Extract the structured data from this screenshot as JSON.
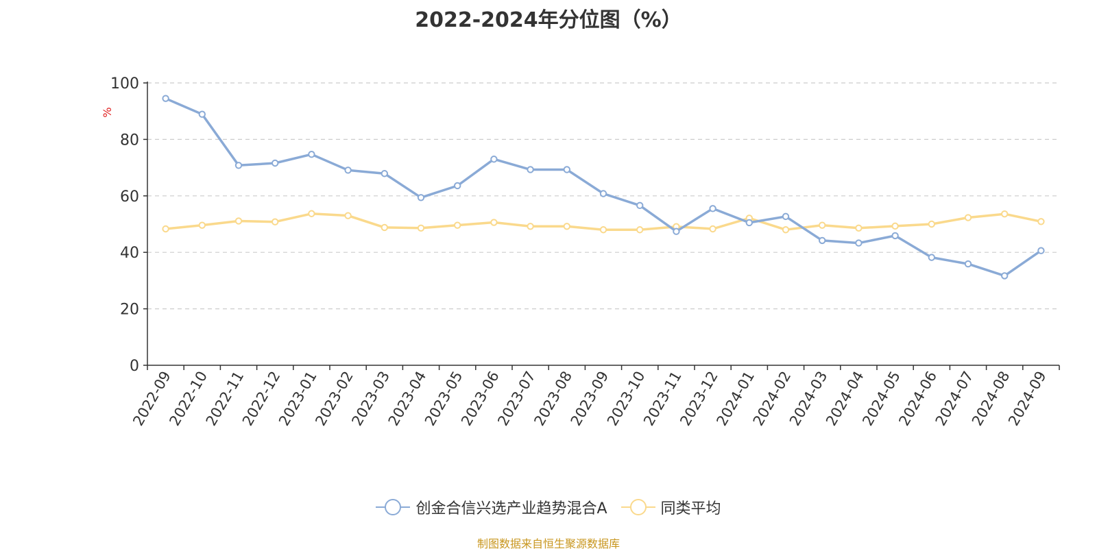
{
  "chart_data": {
    "type": "line",
    "title": "2022-2024年分位图（%）",
    "ylabel": "%",
    "xlabel": "",
    "ylim": [
      0,
      100
    ],
    "yticks": [
      0,
      20,
      40,
      60,
      80,
      100
    ],
    "grid": true,
    "legend_position": "bottom",
    "categories": [
      "2022-09",
      "2022-10",
      "2022-11",
      "2022-12",
      "2023-01",
      "2023-02",
      "2023-03",
      "2023-04",
      "2023-05",
      "2023-06",
      "2023-07",
      "2023-08",
      "2023-09",
      "2023-10",
      "2023-11",
      "2023-12",
      "2024-01",
      "2024-02",
      "2024-03",
      "2024-04",
      "2024-05",
      "2024-06",
      "2024-07",
      "2024-08",
      "2024-09"
    ],
    "series": [
      {
        "name": "创金合信兴选产业趋势混合A",
        "color": "#8aaad6",
        "values": [
          94.5,
          88.9,
          70.8,
          71.6,
          74.7,
          69.1,
          67.9,
          59.4,
          63.6,
          73.0,
          69.3,
          69.3,
          60.8,
          56.6,
          47.4,
          55.5,
          50.5,
          52.7,
          44.2,
          43.3,
          45.9,
          38.2,
          35.9,
          31.7,
          40.6
        ]
      },
      {
        "name": "同类平均",
        "color": "#fad98c",
        "values": [
          48.3,
          49.6,
          51.1,
          50.8,
          53.7,
          53.0,
          48.8,
          48.6,
          49.6,
          50.6,
          49.2,
          49.2,
          48.0,
          48.0,
          49.1,
          48.3,
          52.1,
          48.0,
          49.6,
          48.6,
          49.3,
          50.0,
          52.3,
          53.6,
          50.9
        ]
      }
    ]
  },
  "footer": {
    "source_note": "制图数据来自恒生聚源数据库"
  }
}
